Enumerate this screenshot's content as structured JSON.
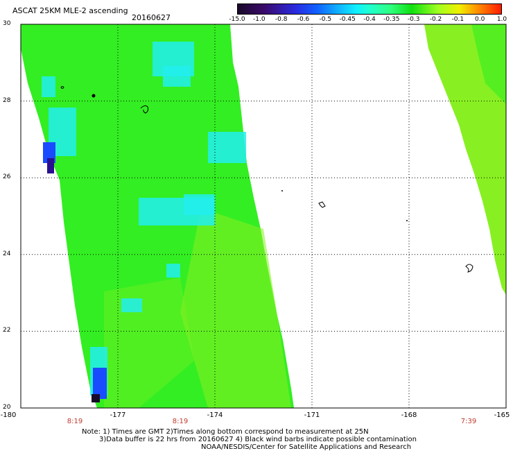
{
  "header": {
    "title": "ASCAT 25KM MLE-2 ascending",
    "date": "20160627"
  },
  "colorbar": {
    "labels": [
      "-15.0",
      "-1.0",
      "-0.8",
      "-0.6",
      "-0.5",
      "-0.45",
      "-0.4",
      "-0.35",
      "-0.3",
      "-0.2",
      "-0.1",
      "0.0",
      "1.0"
    ]
  },
  "map": {
    "lat_labels": [
      "30",
      "28",
      "26",
      "24",
      "22",
      "20"
    ],
    "lon_labels": [
      "-180",
      "-177",
      "-174",
      "-171",
      "-168",
      "-165"
    ],
    "time_labels": [
      "8:19",
      "8:19",
      "7:39"
    ],
    "colors": {
      "green": "#33ee22",
      "light_green": "#88f022",
      "cyan": "#22eeee",
      "blue": "#1a4cff",
      "navy": "#2a1090",
      "dark": "#1a0a2a",
      "time_red": "#c0392b"
    }
  },
  "notes": {
    "line1": "Note: 1) Times are GMT 2)Times along bottom correspond to measurement at 25N",
    "line2": "3)Data buffer is 22 hrs from 20160627 4) Black wind barbs indicate possible contamination",
    "line3": "NOAA/NESDIS/Center for Satellite Applications and Research"
  }
}
